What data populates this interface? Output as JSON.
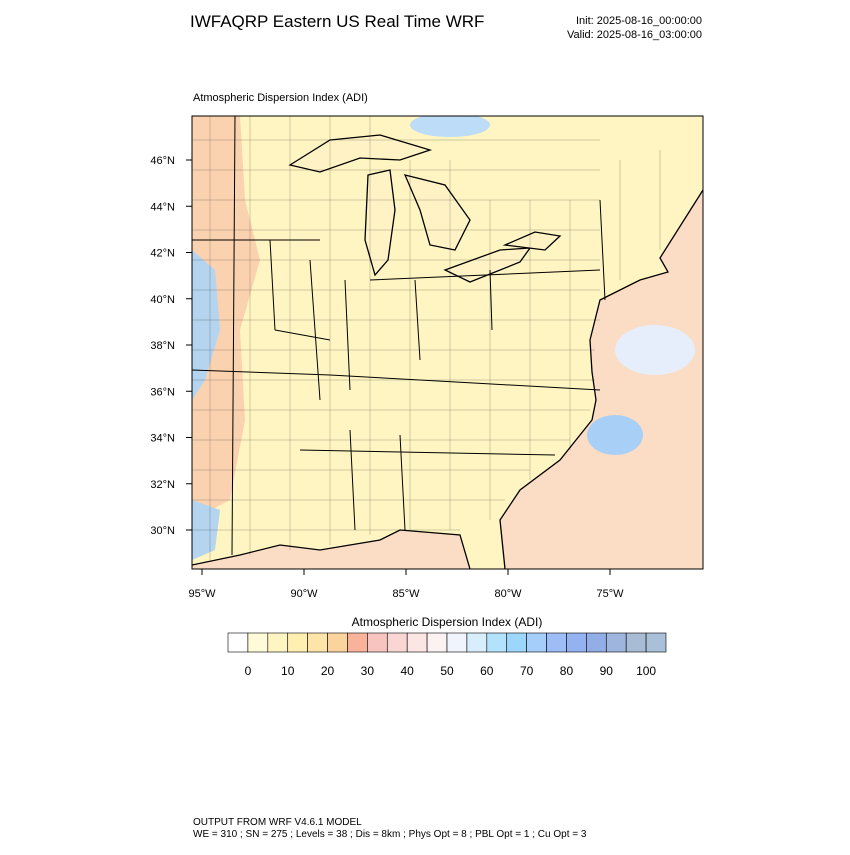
{
  "header": {
    "title": "IWFAQRP Eastern US Real Time WRF",
    "init": "Init: 2025-08-16_00:00:00",
    "valid": "Valid: 2025-08-16_03:00:00"
  },
  "map": {
    "title": "Atmospheric Dispersion Index   (ADI)",
    "lat_labels": [
      "46°N",
      "44°N",
      "42°N",
      "40°N",
      "38°N",
      "36°N",
      "34°N",
      "32°N",
      "30°N"
    ],
    "lon_labels": [
      "95°W",
      "90°W",
      "85°W",
      "80°W",
      "75°W"
    ]
  },
  "colorbar": {
    "title": "Atmospheric Dispersion Index  (ADI)",
    "ticks": [
      0,
      10,
      20,
      30,
      40,
      50,
      60,
      70,
      80,
      90,
      100
    ],
    "colors": [
      "#ffffff",
      "#fffbd8",
      "#fff5c2",
      "#ffefb0",
      "#fde4a8",
      "#fbd39c",
      "#f9b39a",
      "#f7c4c0",
      "#f9d6d4",
      "#fbe6e4",
      "#fdf2f2",
      "#f0f4fc",
      "#d8eefc",
      "#b2e2fc",
      "#9cd6fa",
      "#a6cefa",
      "#9ebcf6",
      "#94b2f0",
      "#92aee6",
      "#9eb6de",
      "#a8bcd6",
      "#a9c0d8"
    ]
  },
  "footer": {
    "line1": "OUTPUT FROM WRF V4.6.1 MODEL",
    "line2": "WE = 310 ; SN = 275 ; Levels = 38 ; Dis = 8km ; Phys Opt = 8 ; PBL Opt = 1 ; Cu Opt = 3"
  }
}
